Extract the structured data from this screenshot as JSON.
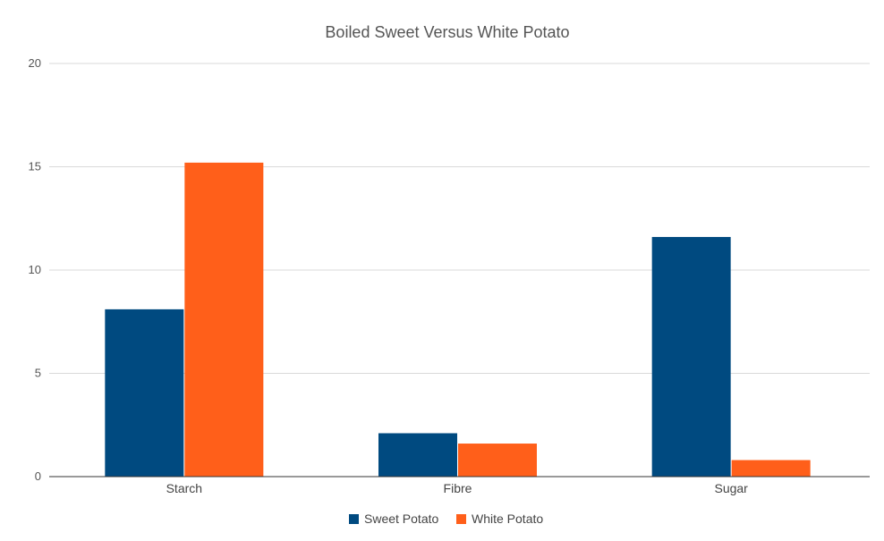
{
  "chart_data": {
    "type": "bar",
    "title": "Boiled Sweet Versus White Potato",
    "categories": [
      "Starch",
      "Fibre",
      "Sugar"
    ],
    "series": [
      {
        "name": "Sweet Potato",
        "color": "#004a80",
        "values": [
          8.1,
          2.1,
          11.6
        ]
      },
      {
        "name": "White Potato",
        "color": "#ff5f1a",
        "values": [
          15.2,
          1.6,
          0.8
        ]
      }
    ],
    "yticks": [
      "0",
      "5",
      "10",
      "15",
      "20"
    ],
    "ylim": [
      0,
      20
    ],
    "xlabel": "",
    "ylabel": "",
    "grid": true,
    "legend": "bottom"
  }
}
